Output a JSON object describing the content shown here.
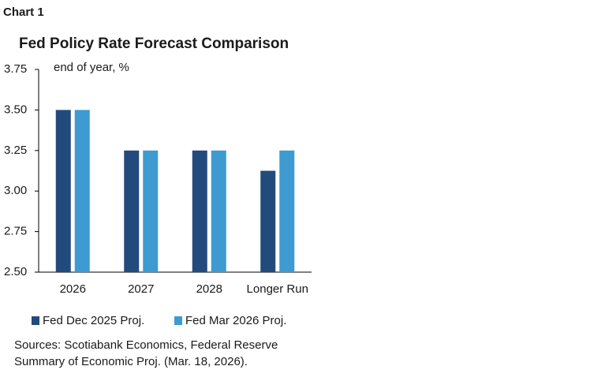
{
  "chart_data": {
    "type": "bar",
    "label": "Chart 1",
    "title": "Fed Policy Rate Forecast Comparison",
    "y_label": "end of year, %",
    "categories": [
      "2026",
      "2027",
      "2028",
      "Longer Run"
    ],
    "series": [
      {
        "name": "Fed Dec 2025 Proj.",
        "color": "#234a7c",
        "values": [
          3.5,
          3.25,
          3.25,
          3.125
        ]
      },
      {
        "name": "Fed Mar 2026 Proj.",
        "color": "#3d9bd1",
        "values": [
          3.5,
          3.25,
          3.25,
          3.25
        ]
      }
    ],
    "ylim": [
      2.5,
      3.75
    ],
    "yticks": [
      {
        "value": 2.5,
        "label": "2.50"
      },
      2.75,
      {
        "value": 3.0,
        "label": "3.00"
      },
      3.25,
      {
        "value": 3.5,
        "label": "3.50"
      },
      3.75
    ],
    "grid": false,
    "source": [
      "Sources: Scotiabank Economics, Federal Reserve",
      "Summary of Economic Proj. (Mar. 18, 2026)."
    ]
  }
}
